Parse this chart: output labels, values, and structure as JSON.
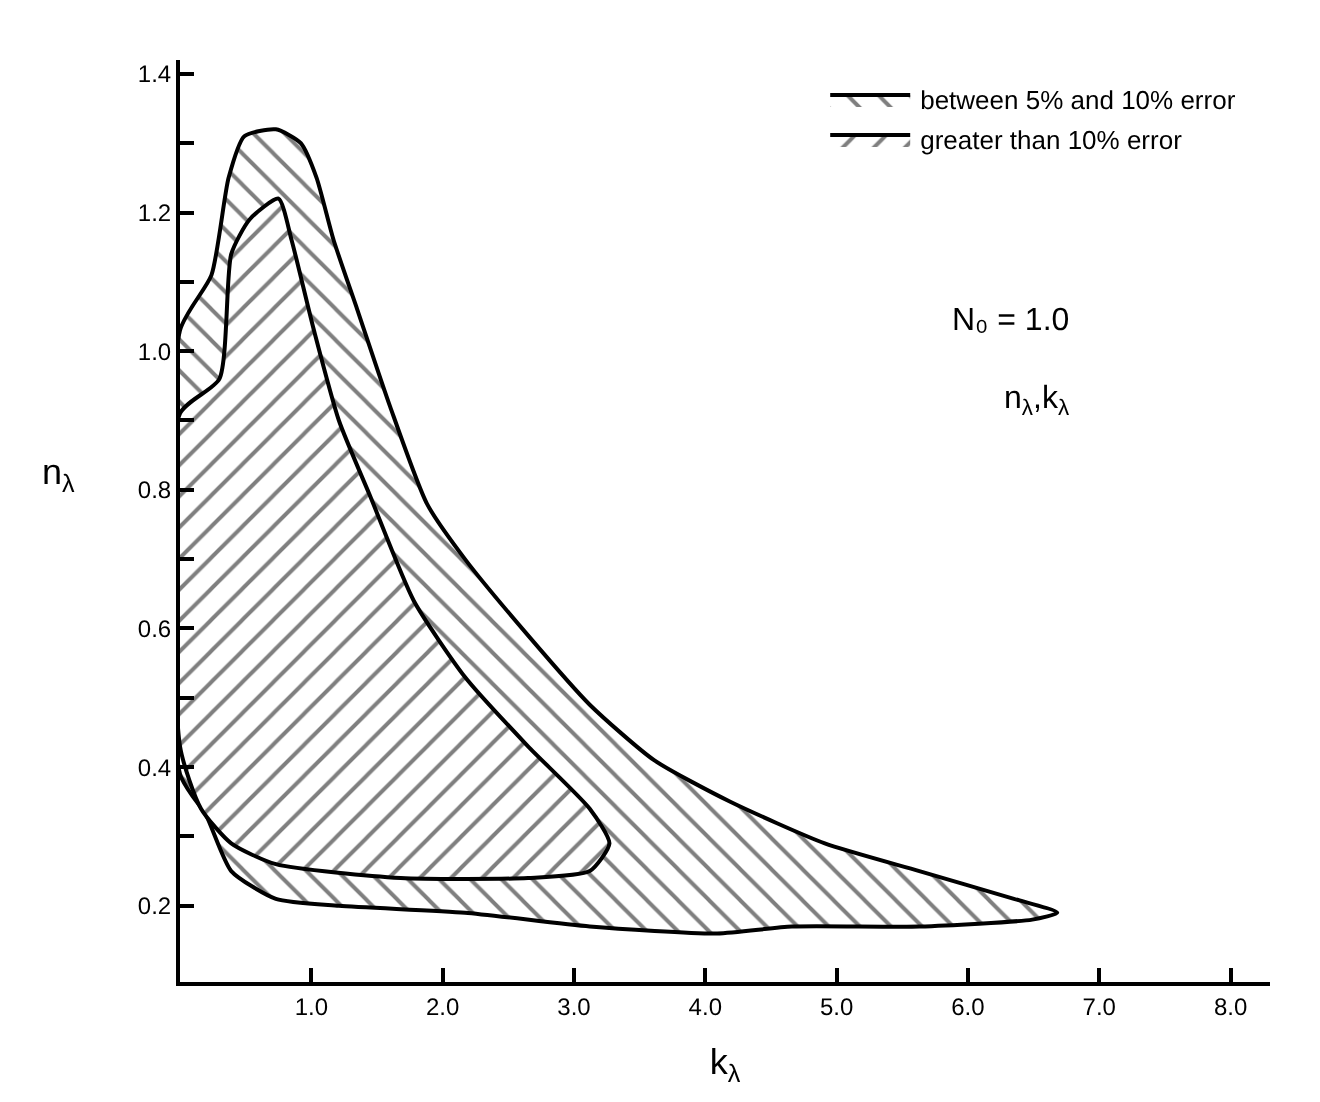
{
  "chart_data": {
    "type": "area",
    "xlabel": "k$_{λ}$",
    "ylabel": "n$_{λ}$",
    "series": [
      {
        "name": "between 5% and 10% error",
        "color": "#000000",
        "x": [
          0,
          0.24,
          0.37,
          0.49,
          0.73,
          0.92,
          1.04,
          1.17,
          1.35,
          1.6,
          1.88,
          2.17,
          2.65,
          3.12,
          3.61,
          4.19,
          4.91,
          5.63,
          6.35,
          6.68,
          6.49,
          5.63,
          4.66,
          4.09,
          3.12,
          2.17,
          1.21,
          0.73,
          0.39,
          0.2,
          0,
          0
        ],
        "values": [
          1.03,
          1.11,
          1.25,
          1.31,
          1.32,
          1.3,
          1.25,
          1.16,
          1.06,
          0.92,
          0.78,
          0.7,
          0.59,
          0.49,
          0.41,
          0.35,
          0.29,
          0.25,
          0.21,
          0.19,
          0.18,
          0.17,
          0.17,
          0.16,
          0.17,
          0.19,
          0.2,
          0.21,
          0.25,
          0.33,
          0.39,
          1.03
        ]
      },
      {
        "name": "greater than 10% error",
        "color": "#000000",
        "x": [
          0,
          0.3,
          0.39,
          0.53,
          0.75,
          0.85,
          1.02,
          1.21,
          1.45,
          1.78,
          2.17,
          2.65,
          3.12,
          3.27,
          3.12,
          2.65,
          1.68,
          0.73,
          0.39,
          0.16,
          0,
          0
        ],
        "values": [
          0.91,
          0.96,
          1.14,
          1.19,
          1.22,
          1.16,
          1.03,
          0.9,
          0.79,
          0.64,
          0.53,
          0.43,
          0.34,
          0.29,
          0.25,
          0.24,
          0.24,
          0.26,
          0.29,
          0.34,
          0.43,
          0.91
        ]
      }
    ],
    "annotations": [
      "N₀ = 1.0",
      "n$_{λ}$,k$_{λ}$"
    ],
    "xlim": [
      0,
      8.3
    ],
    "ylim": [
      0.09,
      1.42
    ],
    "xticks": [
      {
        "value": 1,
        "label": "1.0"
      },
      {
        "value": 2,
        "label": "2.0"
      },
      {
        "value": 3,
        "label": "3.0"
      },
      {
        "value": 4,
        "label": "4.0"
      },
      {
        "value": 5,
        "label": "5.0"
      },
      {
        "value": 6,
        "label": "6.0"
      },
      {
        "value": 7,
        "label": "7.0"
      },
      {
        "value": 8,
        "label": "8.0"
      }
    ],
    "yticks": [
      0.2,
      {
        "value": 0.3,
        "label": null
      },
      0.4,
      {
        "value": 0.5,
        "label": null
      },
      0.6,
      {
        "value": 0.7,
        "label": null
      },
      0.8,
      {
        "value": 0.9,
        "label": null
      },
      {
        "value": 1,
        "label": "1.0"
      },
      {
        "value": 1.1,
        "label": null
      },
      1.2,
      {
        "value": 1.3,
        "label": null
      },
      1.4
    ],
    "legend": "top right",
    "marker": "none",
    "line_style": "solid"
  }
}
